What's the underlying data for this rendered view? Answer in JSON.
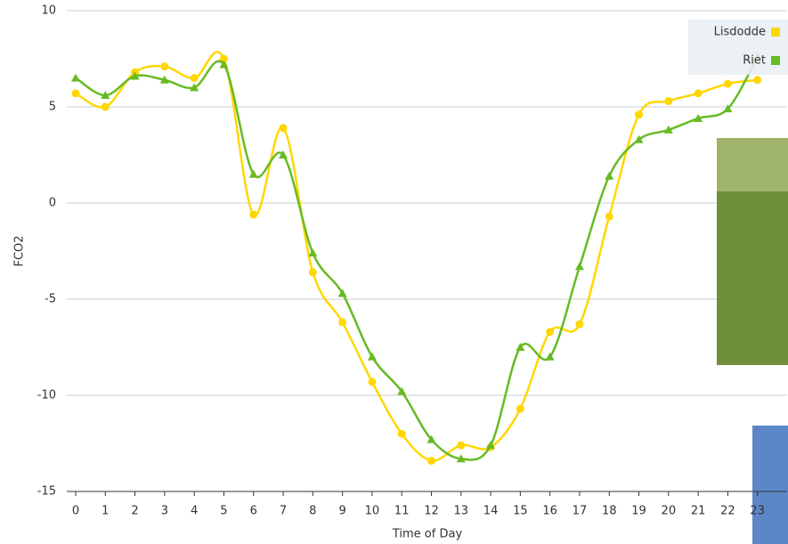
{
  "chart_data": {
    "type": "line",
    "xlabel": "Time of Day",
    "ylabel": "FCO2",
    "x": [
      0,
      1,
      2,
      3,
      4,
      5,
      6,
      7,
      8,
      9,
      10,
      11,
      12,
      13,
      14,
      15,
      16,
      17,
      18,
      19,
      20,
      21,
      22,
      23
    ],
    "series": [
      {
        "name": "Lisdodde",
        "color": "#ffd700",
        "marker": "circle",
        "values": [
          5.7,
          5.0,
          6.8,
          7.1,
          6.5,
          7.5,
          -0.6,
          3.9,
          -3.6,
          -6.2,
          -9.3,
          -12.0,
          -13.4,
          -12.6,
          -12.7,
          -10.7,
          -6.7,
          -6.3,
          -0.7,
          4.6,
          5.3,
          5.7,
          6.2,
          6.4
        ]
      },
      {
        "name": "Riet",
        "color": "#66bb22",
        "marker": "triangle",
        "values": [
          6.5,
          5.6,
          6.6,
          6.4,
          6.0,
          7.2,
          1.5,
          2.5,
          -2.6,
          -4.7,
          -8.0,
          -9.8,
          -12.3,
          -13.3,
          -12.6,
          -7.5,
          -8.0,
          -3.3,
          1.4,
          3.3,
          3.8,
          4.4,
          4.9,
          7.6
        ]
      }
    ],
    "xlim": [
      -0.3,
      24.0
    ],
    "xticks": [
      0,
      1,
      2,
      3,
      4,
      5,
      6,
      7,
      8,
      9,
      10,
      11,
      12,
      13,
      14,
      15,
      16,
      17,
      18,
      19,
      20,
      21,
      22,
      23
    ],
    "ylim": [
      -15,
      10
    ],
    "yticks": [
      -15,
      -10,
      -5,
      0,
      5,
      10
    ],
    "grid": true,
    "legend": "top-right"
  }
}
